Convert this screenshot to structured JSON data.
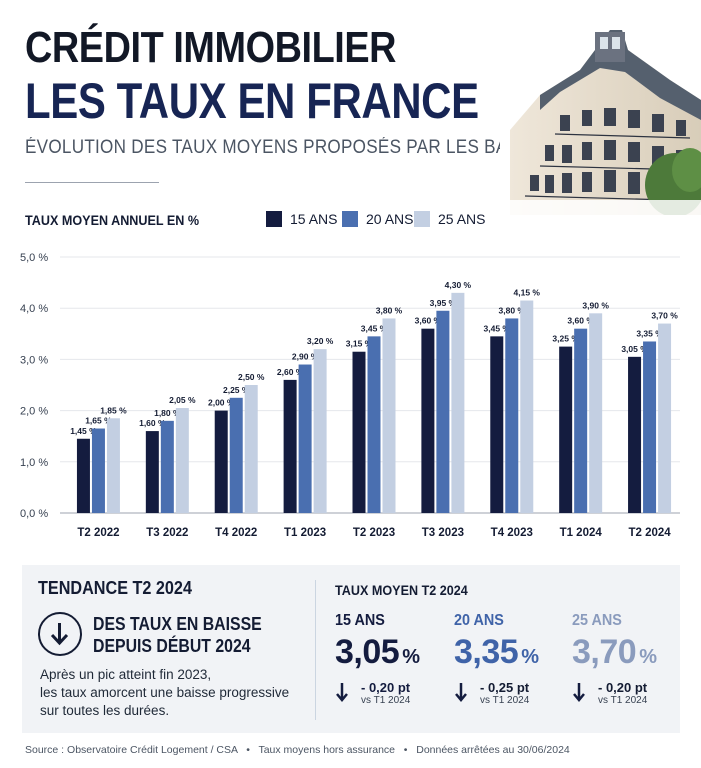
{
  "header": {
    "title_line1": "CRÉDIT IMMOBILIER",
    "title_line2": "LES TAUX EN FRANCE",
    "subtitle": "ÉVOLUTION DES TAUX MOYENS PROPOSÉS PAR LES BANQUES"
  },
  "legend": {
    "title": "TAUX MOYEN ANNUEL EN %",
    "items": [
      {
        "label": "15 ANS",
        "color": "#141c3f"
      },
      {
        "label": "20 ANS",
        "color": "#4a6fb0"
      },
      {
        "label": "25 ANS",
        "color": "#c3cfe2"
      }
    ]
  },
  "chart_data": {
    "type": "bar",
    "categories": [
      "T2 2022",
      "T3 2022",
      "T4 2022",
      "T1 2023",
      "T2 2023",
      "T3 2023",
      "T4 2023",
      "T1 2024",
      "T2 2024"
    ],
    "series": [
      {
        "name": "15 ANS",
        "values": [
          1.45,
          1.6,
          2.0,
          2.6,
          3.15,
          3.6,
          3.45,
          3.25,
          3.05
        ],
        "labels": [
          "1,45 %",
          "1,60 %",
          "2,00 %",
          "2,60 %",
          "3,15 %",
          "3,60 %",
          "3,45 %",
          "3,25 %",
          "3,05 %"
        ]
      },
      {
        "name": "20 ANS",
        "values": [
          1.65,
          1.8,
          2.25,
          2.9,
          3.45,
          3.95,
          3.8,
          3.6,
          3.35
        ],
        "labels": [
          "1,65 %",
          "1,80 %",
          "2,25 %",
          "2,90 %",
          "3,45 %",
          "3,95 %",
          "3,80 %",
          "3,60 %",
          "3,35 %"
        ]
      },
      {
        "name": "25 ANS",
        "values": [
          1.85,
          2.05,
          2.5,
          3.2,
          3.8,
          4.3,
          4.15,
          3.9,
          3.7
        ],
        "labels": [
          "1,85 %",
          "2,05 %",
          "2,50 %",
          "3,20 %",
          "3,80 %",
          "4,30 %",
          "4,15 %",
          "3,90 %",
          "3,70 %"
        ]
      }
    ],
    "yticks": [
      0,
      1,
      2,
      3,
      4,
      5
    ],
    "ytick_labels": [
      "0,0 %",
      "1,0 %",
      "2,0 %",
      "3,0 %",
      "4,0 %",
      "5,0 %"
    ],
    "ylim": [
      0,
      5
    ],
    "grid": true,
    "title": "TAUX MOYEN ANNUEL EN %",
    "xlabel": "",
    "ylabel": ""
  },
  "trend": {
    "title": "TENDANCE T2 2024",
    "headline_line1": "DES TAUX EN BAISSE",
    "headline_line2": "DEPUIS DÉBUT 2024",
    "body_line1": "Après un pic atteint fin 2023,",
    "body_line2": "les taux amorcent une baisse progressive",
    "body_line3": "sur toutes les durées."
  },
  "stats": {
    "title": "TAUX MOYEN T2 2024",
    "items": [
      {
        "label": "15 ANS",
        "value": "3,05",
        "unit": "%",
        "delta": "- 0,20 pt",
        "ref": "vs T1 2024",
        "color": "#141c3f"
      },
      {
        "label": "20 ANS",
        "value": "3,35",
        "unit": "%",
        "delta": "- 0,25 pt",
        "ref": "vs T1 2024",
        "color": "#3f63a8"
      },
      {
        "label": "25 ANS",
        "value": "3,70",
        "unit": "%",
        "delta": "- 0,20 pt",
        "ref": "vs T1 2024",
        "color": "#8a9bbd"
      }
    ]
  },
  "footer": {
    "source": "Source : Observatoire Crédit Logement / CSA",
    "note1": "Taux moyens hors assurance",
    "note2": "Données arrêtées au 30/06/2024"
  }
}
